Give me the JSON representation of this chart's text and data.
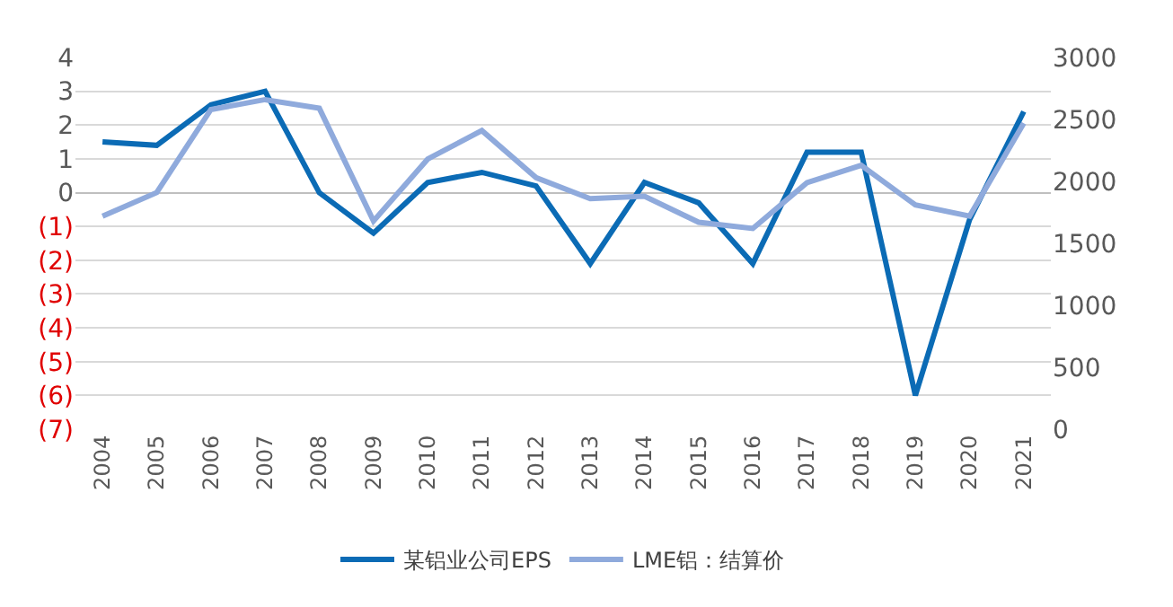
{
  "chart_data": {
    "type": "line",
    "categories": [
      "2004",
      "2005",
      "2006",
      "2007",
      "2008",
      "2009",
      "2010",
      "2011",
      "2012",
      "2013",
      "2014",
      "2015",
      "2016",
      "2017",
      "2018",
      "2019",
      "2020",
      "2021"
    ],
    "series": [
      {
        "name": "某铝业公司EPS",
        "color": "#0b6bb5",
        "values": [
          1.5,
          1.4,
          2.6,
          3.0,
          0.0,
          -1.2,
          0.3,
          0.6,
          0.2,
          -2.1,
          0.3,
          -0.3,
          -2.1,
          1.2,
          1.2,
          -6.0,
          -0.8,
          2.4
        ]
      },
      {
        "name": "LME铝：结算价",
        "color": "#8faadc",
        "axis": "y2",
        "values": [
          1720,
          1910,
          2580,
          2660,
          2590,
          1680,
          2180,
          2410,
          2030,
          1860,
          1880,
          1670,
          1620,
          1990,
          2130,
          1810,
          1720,
          2470
        ]
      }
    ],
    "ylim": [
      -7,
      4
    ],
    "yticks": [
      4,
      3,
      2,
      1,
      0,
      {
        "value": -1,
        "label": "(1)"
      },
      {
        "value": -2,
        "label": "(2)"
      },
      {
        "value": -3,
        "label": "(3)"
      },
      {
        "value": -4,
        "label": "(4)"
      },
      {
        "value": -5,
        "label": "(5)"
      },
      {
        "value": -6,
        "label": "(6)"
      },
      {
        "value": -7,
        "label": "(7)"
      }
    ],
    "y2lim": [
      0,
      3000
    ],
    "y2ticks": [
      0,
      500,
      1000,
      1500,
      2000,
      2500,
      3000
    ],
    "grid": "y",
    "legend": "bottom",
    "marker": "none",
    "line_style": "solid"
  }
}
